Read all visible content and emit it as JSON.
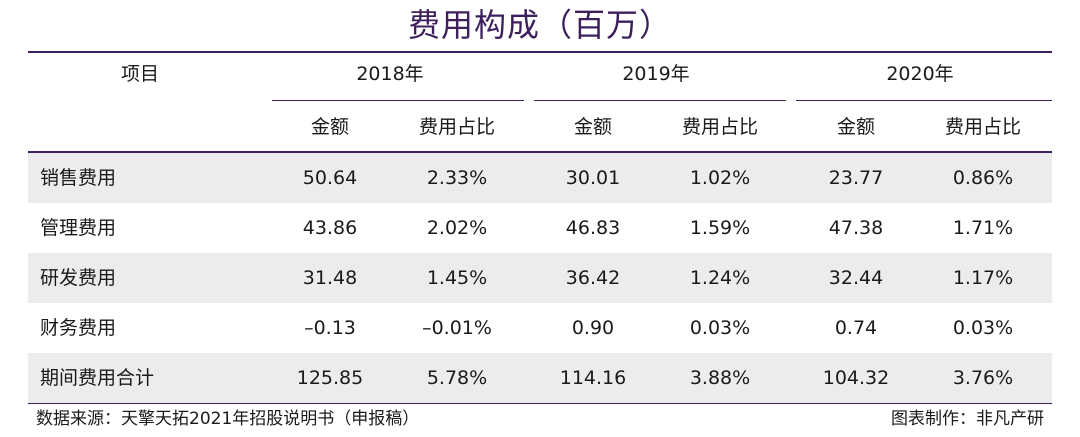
{
  "title": "费用构成（百万）",
  "header": {
    "item_label": "项目",
    "years": [
      "2018年",
      "2019年",
      "2020年"
    ],
    "sub_headers": [
      "金额",
      "费用占比",
      "金额",
      "费用占比",
      "金额",
      "费用占比"
    ]
  },
  "rows": [
    {
      "label": "销售费用",
      "values": [
        "50.64",
        "2.33%",
        "30.01",
        "1.02%",
        "23.77",
        "0.86%"
      ]
    },
    {
      "label": "管理费用",
      "values": [
        "43.86",
        "2.02%",
        "46.83",
        "1.59%",
        "47.38",
        "1.71%"
      ]
    },
    {
      "label": "研发费用",
      "values": [
        "31.48",
        "1.45%",
        "36.42",
        "1.24%",
        "32.44",
        "1.17%"
      ]
    },
    {
      "label": "财务费用",
      "values": [
        "–0.13",
        "–0.01%",
        "0.90",
        "0.03%",
        "0.74",
        "0.03%"
      ]
    },
    {
      "label": "期间费用合计",
      "values": [
        "125.85",
        "5.78%",
        "114.16",
        "3.88%",
        "104.32",
        "3.76%"
      ]
    }
  ],
  "footer": {
    "source": "数据来源：天擎天拓2021年招股说明书（申报稿）",
    "credit": "图表制作：非凡产研"
  }
}
